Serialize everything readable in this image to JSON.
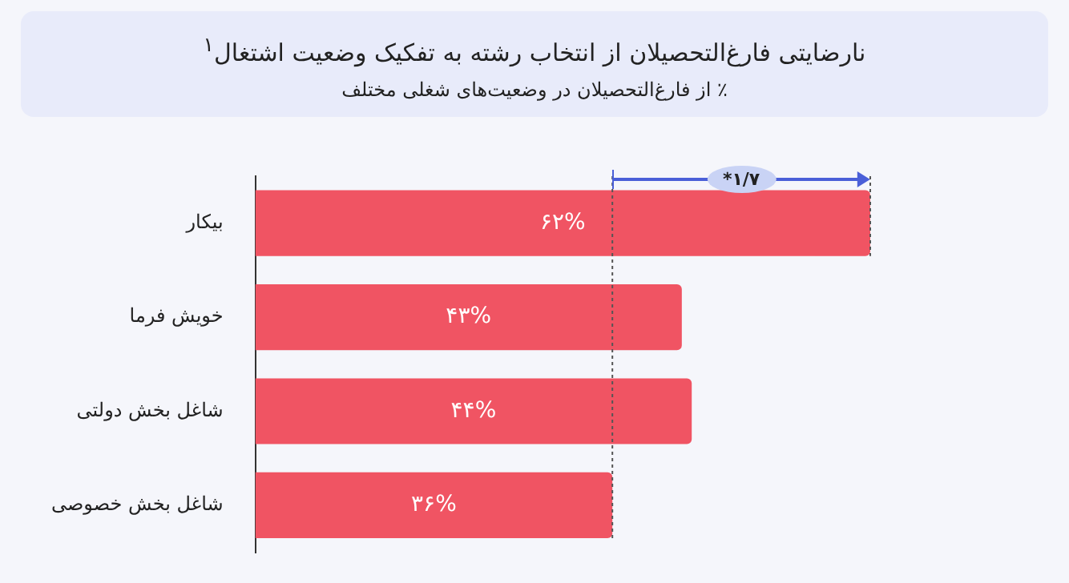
{
  "chart_data": {
    "type": "bar",
    "orientation": "horizontal",
    "title": "نارضایتی فارغ‌التحصیلان از انتخاب رشته به تفکیک وضعیت اشتغال$^{۱}$",
    "subtitle": "٪ از فارغ‌التحصیلان در وضعیت‌های شغلی مختلف",
    "categories": [
      "بیکار",
      "خویش فرما",
      "شاغل بخش دولتی",
      "شاغل بخش خصوصی"
    ],
    "values": [
      62,
      43,
      44,
      36
    ],
    "value_labels": [
      "۶۲%",
      "۴۳%",
      "۴۴%",
      "۳۶%"
    ],
    "color": "#f05463",
    "tick_labels": "y",
    "ref_lines": [
      {
        "axis": "x",
        "value": 36,
        "line_style": "dotted",
        "color": "#555555"
      },
      {
        "axis": "x",
        "value": 62,
        "line_style": "dotted",
        "color": "#555555"
      }
    ],
    "annotations": [
      "*۱/۷"
    ],
    "legend": false
  }
}
